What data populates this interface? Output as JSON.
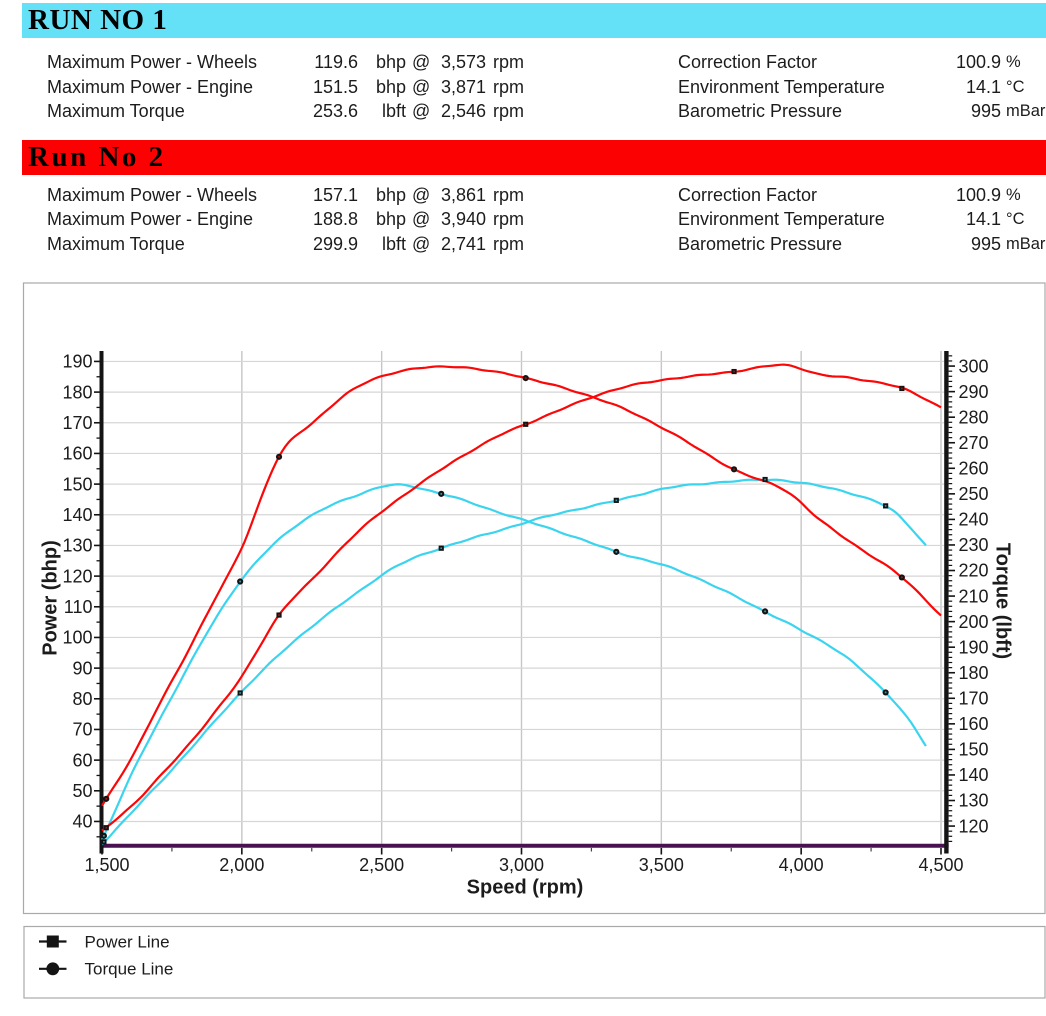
{
  "report": {
    "runs": [
      {
        "title": "RUN NO 1",
        "banner_color": "#64e1f7",
        "stats": [
          {
            "label": "Maximum Power - Wheels",
            "value": "119.6",
            "unit": "bhp",
            "at": "@",
            "rpm": "3,573",
            "rpm_unit": "rpm"
          },
          {
            "label": "Maximum Power - Engine",
            "value": "151.5",
            "unit": "bhp",
            "at": "@",
            "rpm": "3,871",
            "rpm_unit": "rpm"
          },
          {
            "label": "Maximum Torque",
            "value": "253.6",
            "unit": "lbft",
            "at": "@",
            "rpm": "2,546",
            "rpm_unit": "rpm"
          }
        ],
        "conditions": [
          {
            "label": "Correction Factor",
            "value": "100.9",
            "unit": "%"
          },
          {
            "label": "Environment Temperature",
            "value": "14.1",
            "unit": "°C"
          },
          {
            "label": "Barometric Pressure",
            "value": "995",
            "unit": "mBar"
          }
        ]
      },
      {
        "title": "Run No 2",
        "banner_color": "#fc0101",
        "stats": [
          {
            "label": "Maximum Power - Wheels",
            "value": "157.1",
            "unit": "bhp",
            "at": "@",
            "rpm": "3,861",
            "rpm_unit": "rpm"
          },
          {
            "label": "Maximum Power - Engine",
            "value": "188.8",
            "unit": "bhp",
            "at": "@",
            "rpm": "3,940",
            "rpm_unit": "rpm"
          },
          {
            "label": "Maximum Torque",
            "value": "299.9",
            "unit": "lbft",
            "at": "@",
            "rpm": "2,741",
            "rpm_unit": "rpm"
          }
        ],
        "conditions": [
          {
            "label": "Correction Factor",
            "value": "100.9",
            "unit": "%"
          },
          {
            "label": "Environment Temperature",
            "value": "14.1",
            "unit": "°C"
          },
          {
            "label": "Barometric Pressure",
            "value": "995",
            "unit": "mBar"
          }
        ]
      }
    ]
  },
  "chart_data": {
    "type": "line",
    "xlabel": "Speed (rpm)",
    "ylabel_left": "Power (bhp)",
    "ylabel_right": "Torque (lbft)",
    "x_axis": {
      "min": 1500,
      "max": 4500,
      "major": 500,
      "minor": 250,
      "tick_labels": [
        "1,500",
        "2,000",
        "2,500",
        "3,000",
        "3,500",
        "4,000",
        "4,500"
      ]
    },
    "power_axis": {
      "range": [
        32.0,
        193.4
      ],
      "tick_from": 40,
      "tick_to": 190,
      "major": 10,
      "minor": 5
    },
    "torque_axis": {
      "range": [
        112.2,
        305.9
      ],
      "tick_from": 120,
      "tick_to": 300,
      "major": 10,
      "minor": 2
    },
    "grid": {
      "horizontal": "power-major-ticks",
      "vertical": "x-major-ticks"
    },
    "legend_position": "bottom-box",
    "legend": [
      {
        "marker": "square",
        "label": "Power Line"
      },
      {
        "marker": "circle",
        "label": "Torque Line"
      }
    ],
    "colors": {
      "run1": "#3bd4ef",
      "run2": "#fb0707",
      "axis": "#141414",
      "x_baseline": "#4a1150",
      "grid_v": "#c6c6c6",
      "grid_h": "#d6d6d6",
      "box_border": "#a9a9a9",
      "text": "#1c1c1c",
      "marker": "#141414"
    },
    "series": [
      {
        "id": "run1-torque",
        "run": "Run 1",
        "quantity": "torque",
        "axis": "right",
        "color": "#3bd4ef",
        "marker": "circle",
        "marker_rpm": [
          1506,
          1994,
          2714,
          3340,
          3875,
          4300
        ],
        "points": [
          [
            1500,
            114.5
          ],
          [
            1613,
            142
          ],
          [
            1705,
            161.5
          ],
          [
            1797,
            180
          ],
          [
            1889,
            198
          ],
          [
            1994,
            215.7
          ],
          [
            2120,
            231
          ],
          [
            2250,
            241.5
          ],
          [
            2400,
            249
          ],
          [
            2546,
            253.6
          ],
          [
            2713,
            250
          ],
          [
            2900,
            243.5
          ],
          [
            3100,
            236.5
          ],
          [
            3339,
            227.3
          ],
          [
            3500,
            222.4
          ],
          [
            3650,
            215.9
          ],
          [
            3871,
            204.0
          ],
          [
            4000,
            196.6
          ],
          [
            4150,
            187
          ],
          [
            4302,
            172.3
          ],
          [
            4380,
            162.5
          ],
          [
            4446,
            151.4
          ]
        ]
      },
      {
        "id": "run1-power",
        "run": "Run 1",
        "quantity": "power",
        "axis": "left",
        "color": "#3bd4ef",
        "marker": "square",
        "marker_rpm": [
          1506,
          1994,
          2714,
          3340,
          3875,
          4300
        ],
        "points": [
          [
            1500,
            32.7
          ],
          [
            1613,
            43.6
          ],
          [
            1705,
            52.4
          ],
          [
            1797,
            61.6
          ],
          [
            1889,
            71.2
          ],
          [
            1994,
            81.9
          ],
          [
            2120,
            93.2
          ],
          [
            2250,
            103.5
          ],
          [
            2400,
            113.8
          ],
          [
            2546,
            122.9
          ],
          [
            2713,
            129.1
          ],
          [
            2900,
            134.4
          ],
          [
            3100,
            139.6
          ],
          [
            3339,
            144.7
          ],
          [
            3500,
            148.3
          ],
          [
            3650,
            150.1
          ],
          [
            3871,
            151.5
          ],
          [
            4000,
            150.3
          ],
          [
            4150,
            147.7
          ],
          [
            4302,
            142.9
          ],
          [
            4380,
            136.9
          ],
          [
            4446,
            129.9
          ]
        ]
      },
      {
        "id": "run2-torque",
        "run": "Run 2",
        "quantity": "torque",
        "axis": "right",
        "color": "#fb0707",
        "marker": "circle",
        "marker_rpm": [
          1513,
          2133,
          3015,
          3760,
          4360
        ],
        "points": [
          [
            1500,
            128
          ],
          [
            1610,
            147.5
          ],
          [
            1705,
            167.5
          ],
          [
            1800,
            187
          ],
          [
            1890,
            206
          ],
          [
            2000,
            229
          ],
          [
            2133,
            264.5
          ],
          [
            2260,
            278.5
          ],
          [
            2400,
            291
          ],
          [
            2550,
            297.5
          ],
          [
            2741,
            299.9
          ],
          [
            2900,
            297.8
          ],
          [
            3015,
            295.3
          ],
          [
            3281,
            287
          ],
          [
            3500,
            276
          ],
          [
            3760,
            259.6
          ],
          [
            3940,
            251.5
          ],
          [
            4067,
            239.8
          ],
          [
            4200,
            229.5
          ],
          [
            4360,
            217.3
          ],
          [
            4500,
            202.3
          ]
        ]
      },
      {
        "id": "run2-power",
        "run": "Run 2",
        "quantity": "power",
        "axis": "left",
        "color": "#fb0707",
        "marker": "square",
        "marker_rpm": [
          1513,
          2133,
          3015,
          3760,
          4360
        ],
        "points": [
          [
            1500,
            36.8
          ],
          [
            1610,
            45.4
          ],
          [
            1705,
            54.5
          ],
          [
            1800,
            64.1
          ],
          [
            1890,
            74.1
          ],
          [
            2000,
            87.2
          ],
          [
            2133,
            107.3
          ],
          [
            2260,
            119.8
          ],
          [
            2400,
            133.1
          ],
          [
            2550,
            144.4
          ],
          [
            2741,
            156.5
          ],
          [
            2900,
            164.8
          ],
          [
            3015,
            169.5
          ],
          [
            3281,
            179.3
          ],
          [
            3500,
            183.9
          ],
          [
            3760,
            186.7
          ],
          [
            3940,
            188.8
          ],
          [
            4067,
            185.8
          ],
          [
            4200,
            184.3
          ],
          [
            4360,
            181.2
          ],
          [
            4500,
            175.1
          ]
        ]
      }
    ]
  }
}
